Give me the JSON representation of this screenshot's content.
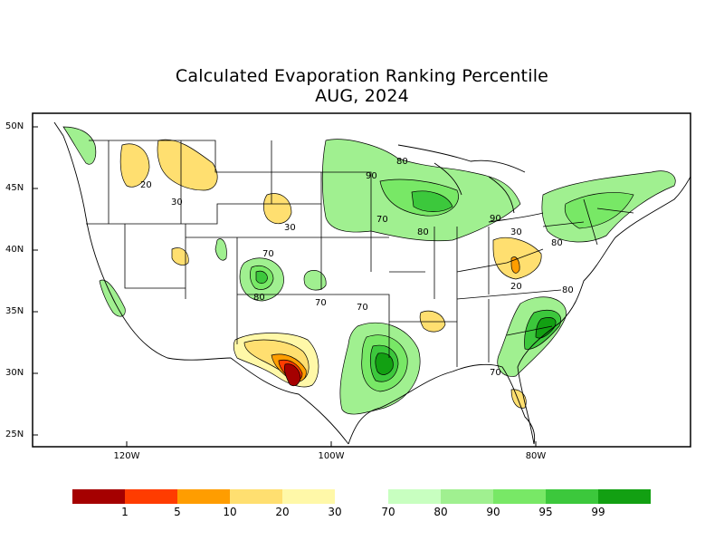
{
  "title": "Calculated Evaporation Ranking Percentile",
  "subtitle": "AUG, 2024",
  "lat_labels": [
    "50N",
    "45N",
    "40N",
    "35N",
    "30N",
    "25N"
  ],
  "lon_labels": [
    "120W",
    "100W",
    "80W"
  ],
  "contour_labels": [
    "20",
    "30",
    "30",
    "70",
    "80",
    "70",
    "90",
    "80",
    "70",
    "80",
    "90",
    "30",
    "80",
    "20",
    "80",
    "70",
    "70"
  ],
  "legend": {
    "low_colors": [
      "#a50000",
      "#ff3c00",
      "#ff9d00",
      "#ffdf70",
      "#fff8a8"
    ],
    "high_colors": [
      "#c8ffc0",
      "#a0f090",
      "#78e866",
      "#3cc83c",
      "#12a012"
    ],
    "labels": [
      "1",
      "5",
      "10",
      "20",
      "30",
      "70",
      "80",
      "90",
      "95",
      "99"
    ]
  }
}
